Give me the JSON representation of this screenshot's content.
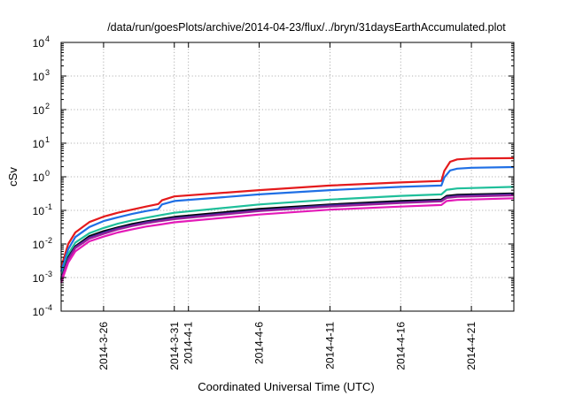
{
  "chart_data": {
    "type": "line",
    "title": "/data/run/goesPlots/archive/2014-04-23/flux/../bryn/31daysEarthAccumulated.plot",
    "xlabel": "Coordinated Universal Time (UTC)",
    "ylabel": "cSv",
    "y_scale": "log",
    "ylim": [
      0.0001,
      10000
    ],
    "xlim": [
      "2014-03-23",
      "2014-04-24"
    ],
    "grid": true,
    "legend": "none",
    "y_ticks": [
      {
        "value": 0.0001,
        "base": "10",
        "exp": "-4"
      },
      {
        "value": 0.001,
        "base": "10",
        "exp": "-3"
      },
      {
        "value": 0.01,
        "base": "10",
        "exp": "-2"
      },
      {
        "value": 0.1,
        "base": "10",
        "exp": "-1"
      },
      {
        "value": 1,
        "base": "10",
        "exp": "0"
      },
      {
        "value": 10,
        "base": "10",
        "exp": "1"
      },
      {
        "value": 100,
        "base": "10",
        "exp": "2"
      },
      {
        "value": 1000,
        "base": "10",
        "exp": "3"
      },
      {
        "value": 10000,
        "base": "10",
        "exp": "4"
      }
    ],
    "x_ticks": [
      {
        "date": "2014-03-26",
        "label": "2014-3-26"
      },
      {
        "date": "2014-03-31",
        "label": "2014-3-31"
      },
      {
        "date": "2014-04-01",
        "label": "2014-4-1"
      },
      {
        "date": "2014-04-06",
        "label": "2014-4-6"
      },
      {
        "date": "2014-04-11",
        "label": "2014-4-11"
      },
      {
        "date": "2014-04-16",
        "label": "2014-4-16"
      },
      {
        "date": "2014-04-21",
        "label": "2014-4-21"
      }
    ],
    "series": [
      {
        "color": "#e41a1c",
        "x": [
          "2014-03-23T00:00",
          "2014-03-23T12:00",
          "2014-03-24T00:00",
          "2014-03-25T00:00",
          "2014-03-26T00:00",
          "2014-03-27T00:00",
          "2014-03-28T00:00",
          "2014-03-29T00:00",
          "2014-03-29T21:00",
          "2014-03-30T03:00",
          "2014-03-31T00:00",
          "2014-04-06T00:00",
          "2014-04-11T00:00",
          "2014-04-16T00:00",
          "2014-04-18T21:00",
          "2014-04-19T02:00",
          "2014-04-19T12:00",
          "2014-04-20T00:00",
          "2014-04-21T00:00",
          "2014-04-24T00:00"
        ],
        "y": [
          0.002,
          0.01,
          0.022,
          0.045,
          0.065,
          0.085,
          0.105,
          0.13,
          0.155,
          0.2,
          0.26,
          0.4,
          0.55,
          0.68,
          0.75,
          1.5,
          2.8,
          3.3,
          3.5,
          3.6
        ]
      },
      {
        "color": "#1f6fe5",
        "x": [
          "2014-03-23T00:00",
          "2014-03-23T12:00",
          "2014-03-24T00:00",
          "2014-03-25T00:00",
          "2014-03-26T00:00",
          "2014-03-27T00:00",
          "2014-03-28T00:00",
          "2014-03-29T00:00",
          "2014-03-29T21:00",
          "2014-03-30T03:00",
          "2014-03-31T00:00",
          "2014-04-06T00:00",
          "2014-04-11T00:00",
          "2014-04-16T00:00",
          "2014-04-18T21:00",
          "2014-04-19T02:00",
          "2014-04-19T12:00",
          "2014-04-20T00:00",
          "2014-04-21T00:00",
          "2014-04-24T00:00"
        ],
        "y": [
          0.0015,
          0.007,
          0.016,
          0.032,
          0.048,
          0.062,
          0.078,
          0.095,
          0.11,
          0.15,
          0.19,
          0.3,
          0.4,
          0.5,
          0.55,
          0.95,
          1.55,
          1.75,
          1.85,
          1.95
        ]
      },
      {
        "color": "#1fbf9a",
        "x": [
          "2014-03-23T00:00",
          "2014-03-23T12:00",
          "2014-03-24T00:00",
          "2014-03-25T00:00",
          "2014-03-26T00:00",
          "2014-03-27T00:00",
          "2014-03-28T00:00",
          "2014-03-29T00:00",
          "2014-03-30T00:00",
          "2014-03-31T00:00",
          "2014-04-06T00:00",
          "2014-04-11T00:00",
          "2014-04-16T00:00",
          "2014-04-18T21:00",
          "2014-04-19T06:00",
          "2014-04-20T00:00",
          "2014-04-24T00:00"
        ],
        "y": [
          0.001,
          0.005,
          0.011,
          0.021,
          0.03,
          0.04,
          0.05,
          0.06,
          0.072,
          0.085,
          0.15,
          0.21,
          0.27,
          0.3,
          0.41,
          0.45,
          0.5
        ]
      },
      {
        "color": "#000000",
        "x": [
          "2014-03-23T00:00",
          "2014-03-23T12:00",
          "2014-03-24T00:00",
          "2014-03-25T00:00",
          "2014-03-26T00:00",
          "2014-03-27T00:00",
          "2014-03-28T00:00",
          "2014-03-29T00:00",
          "2014-03-30T00:00",
          "2014-03-31T00:00",
          "2014-04-06T00:00",
          "2014-04-11T00:00",
          "2014-04-16T00:00",
          "2014-04-18T21:00",
          "2014-04-19T06:00",
          "2014-04-20T00:00",
          "2014-04-24T00:00"
        ],
        "y": [
          0.0009,
          0.004,
          0.0085,
          0.017,
          0.024,
          0.031,
          0.039,
          0.047,
          0.055,
          0.064,
          0.11,
          0.15,
          0.19,
          0.21,
          0.27,
          0.29,
          0.32
        ]
      },
      {
        "color": "#3a2b9a",
        "x": [
          "2014-03-23T00:00",
          "2014-03-23T12:00",
          "2014-03-24T00:00",
          "2014-03-25T00:00",
          "2014-03-26T00:00",
          "2014-03-27T00:00",
          "2014-03-28T00:00",
          "2014-03-29T00:00",
          "2014-03-30T00:00",
          "2014-03-31T00:00",
          "2014-04-06T00:00",
          "2014-04-11T00:00",
          "2014-04-16T00:00",
          "2014-04-18T21:00",
          "2014-04-19T06:00",
          "2014-04-20T00:00",
          "2014-04-24T00:00"
        ],
        "y": [
          0.00085,
          0.0037,
          0.008,
          0.0155,
          0.022,
          0.029,
          0.036,
          0.044,
          0.051,
          0.059,
          0.1,
          0.14,
          0.175,
          0.195,
          0.25,
          0.27,
          0.3
        ]
      },
      {
        "color": "#9a1f9a",
        "x": [
          "2014-03-23T00:00",
          "2014-03-23T12:00",
          "2014-03-24T00:00",
          "2014-03-25T00:00",
          "2014-03-26T00:00",
          "2014-03-27T00:00",
          "2014-03-28T00:00",
          "2014-03-29T00:00",
          "2014-03-30T00:00",
          "2014-03-31T00:00",
          "2014-04-06T00:00",
          "2014-04-11T00:00",
          "2014-04-16T00:00",
          "2014-04-18T21:00",
          "2014-04-19T06:00",
          "2014-04-20T00:00",
          "2014-04-24T00:00"
        ],
        "y": [
          0.0008,
          0.0034,
          0.0075,
          0.0145,
          0.02,
          0.027,
          0.034,
          0.041,
          0.048,
          0.055,
          0.095,
          0.13,
          0.165,
          0.185,
          0.235,
          0.255,
          0.28
        ]
      },
      {
        "color": "#e41ab8",
        "x": [
          "2014-03-23T00:00",
          "2014-03-23T12:00",
          "2014-03-24T00:00",
          "2014-03-25T00:00",
          "2014-03-26T00:00",
          "2014-03-27T00:00",
          "2014-03-28T00:00",
          "2014-03-29T00:00",
          "2014-03-30T00:00",
          "2014-03-31T00:00",
          "2014-04-06T00:00",
          "2014-04-11T00:00",
          "2014-04-16T00:00",
          "2014-04-18T21:00",
          "2014-04-19T06:00",
          "2014-04-20T00:00",
          "2014-04-24T00:00"
        ],
        "y": [
          0.0007,
          0.0028,
          0.006,
          0.012,
          0.0165,
          0.022,
          0.027,
          0.033,
          0.038,
          0.044,
          0.075,
          0.105,
          0.13,
          0.145,
          0.19,
          0.205,
          0.23
        ]
      }
    ]
  }
}
